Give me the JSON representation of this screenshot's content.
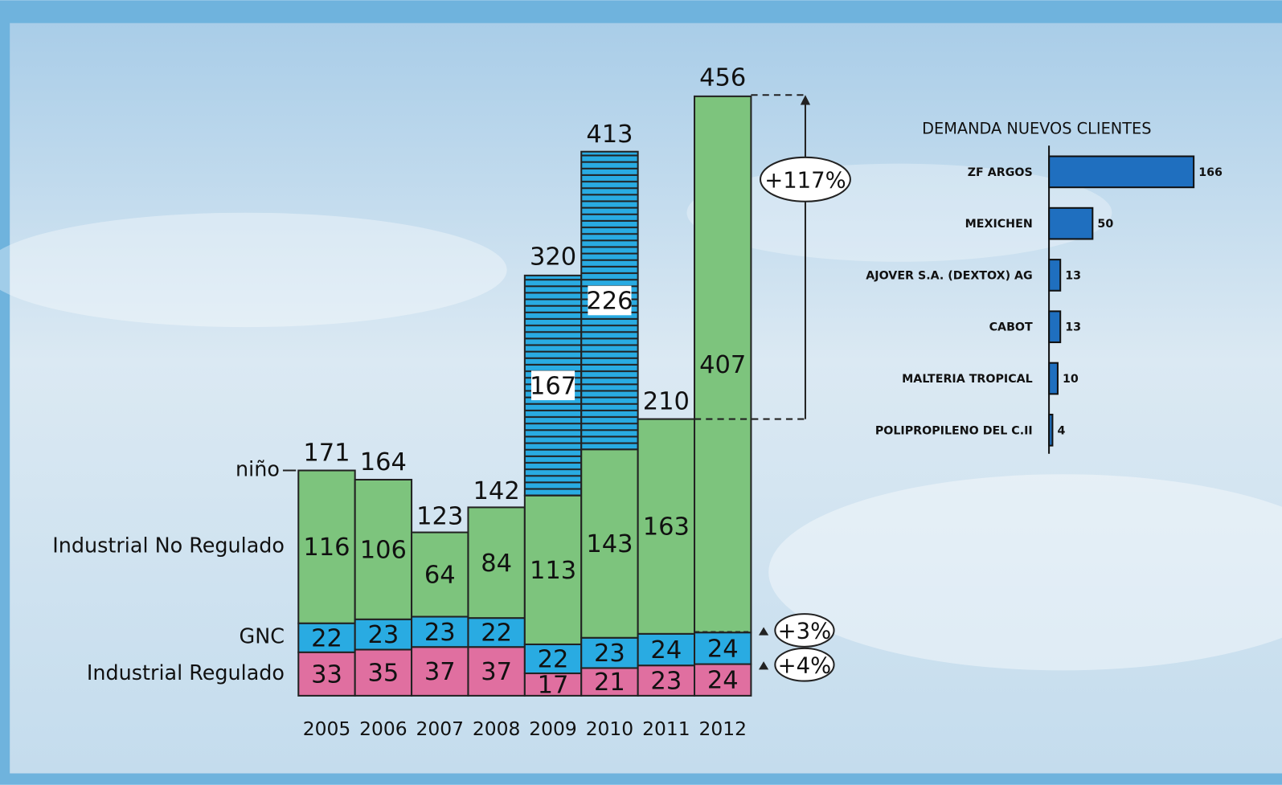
{
  "chart_data": [
    {
      "type": "bar",
      "stacked": true,
      "categories": [
        "2005",
        "2006",
        "2007",
        "2008",
        "2009",
        "2010",
        "2011",
        "2012"
      ],
      "series": [
        {
          "name": "Industrial Regulado",
          "color": "#e06fa0",
          "values": [
            33,
            35,
            37,
            37,
            17,
            21,
            23,
            24
          ]
        },
        {
          "name": "GNC",
          "color": "#29abe2",
          "values": [
            22,
            23,
            23,
            22,
            22,
            23,
            24,
            24
          ]
        },
        {
          "name": "Industrial No Regulado",
          "color": "#7dc47d",
          "values": [
            116,
            106,
            64,
            84,
            113,
            143,
            163,
            407
          ]
        },
        {
          "name": "niño",
          "color": "#29abe2",
          "pattern": "hatch",
          "values": [
            null,
            null,
            null,
            null,
            167,
            226,
            null,
            null
          ]
        }
      ],
      "totals": [
        171,
        164,
        123,
        142,
        320,
        413,
        210,
        456
      ],
      "annotations": [
        "+117%",
        "+3%",
        "+4%"
      ]
    },
    {
      "type": "barh",
      "title": "DEMANDA NUEVOS CLIENTES",
      "categories": [
        "ZF ARGOS",
        "MEXICHEN",
        "AJOVER S.A. (DEXTOX) AG",
        "CABOT",
        "MALTERIA TROPICAL",
        "POLIPROPILENO DEL C.II"
      ],
      "values": [
        166,
        50,
        13,
        13,
        10,
        4
      ],
      "color": "#1f6fbf"
    }
  ]
}
